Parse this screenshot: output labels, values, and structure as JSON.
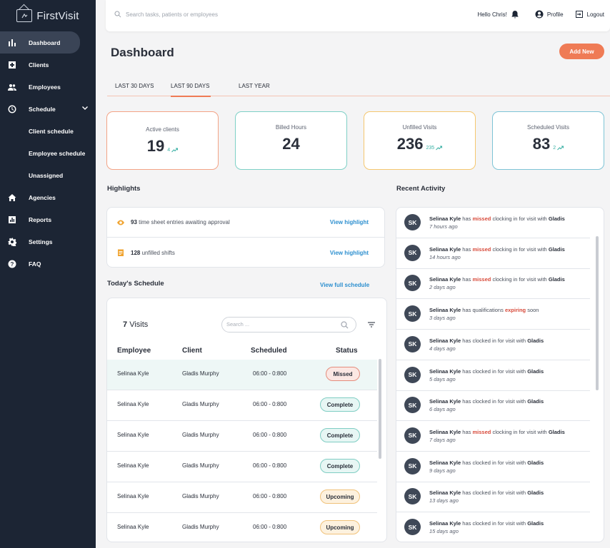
{
  "app": {
    "name": "FirstVisit"
  },
  "sidebar": {
    "items": [
      {
        "label": "Dashboard",
        "icon": "bar-chart-icon"
      },
      {
        "label": "Clients",
        "icon": "medical-cross-icon"
      },
      {
        "label": "Employees",
        "icon": "people-icon"
      },
      {
        "label": "Schedule",
        "icon": "clock-icon"
      },
      {
        "label": "Client schedule"
      },
      {
        "label": "Employee schedule"
      },
      {
        "label": "Unassigned"
      },
      {
        "label": "Agencies",
        "icon": "home-icon"
      },
      {
        "label": "Reports",
        "icon": "report-icon"
      },
      {
        "label": "Settings",
        "icon": "gear-icon"
      },
      {
        "label": "FAQ",
        "icon": "help-icon"
      }
    ]
  },
  "topbar": {
    "search_placeholder": "Search tasks, patients or employees",
    "greeting": "Hello Chris!",
    "profile": "Profile",
    "logout": "Logout"
  },
  "header": {
    "title": "Dashboard",
    "add_new": "Add New"
  },
  "tabs": [
    "LAST 30 DAYS",
    "LAST 90 DAYS",
    "LAST YEAR"
  ],
  "stats": [
    {
      "label": "Active clients",
      "value": "19",
      "delta": "4"
    },
    {
      "label": "Billed Hours",
      "value": "24"
    },
    {
      "label": "Unfilled Visits",
      "value": "236",
      "delta": "235"
    },
    {
      "label": "Scheduled Visits",
      "value": "83",
      "delta": "2"
    }
  ],
  "highlights": {
    "title": "Highlights",
    "items": [
      {
        "count": "93",
        "text": "time sheet entries awaiting approval",
        "link": "View highlight"
      },
      {
        "count": "128",
        "text": "unfilled shifts",
        "link": "View highlight"
      }
    ]
  },
  "schedule": {
    "title": "Today's Schedule",
    "view_full": "View full schedule",
    "visits_count": "7",
    "visits_label": "Visits",
    "search_placeholder": "Search ...",
    "columns": [
      "Employee",
      "Client",
      "Scheduled",
      "Status"
    ],
    "rows": [
      {
        "employee": "Selinaa Kyle",
        "client": "Gladis Murphy",
        "time": "06:00 - 0:800",
        "status": "Missed"
      },
      {
        "employee": "Selinaa Kyle",
        "client": "Gladis Murphy",
        "time": "06:00 - 0:800",
        "status": "Complete"
      },
      {
        "employee": "Selinaa Kyle",
        "client": "Gladis Murphy",
        "time": "06:00 - 0:800",
        "status": "Complete"
      },
      {
        "employee": "Selinaa Kyle",
        "client": "Gladis Murphy",
        "time": "06:00 - 0:800",
        "status": "Complete"
      },
      {
        "employee": "Selinaa Kyle",
        "client": "Gladis Murphy",
        "time": "06:00 - 0:800",
        "status": "Upcoming"
      },
      {
        "employee": "Selinaa Kyle",
        "client": "Gladis Murphy",
        "time": "06:00 - 0:800",
        "status": "Upcoming"
      }
    ]
  },
  "activity": {
    "title": "Recent Activity",
    "items": [
      {
        "initials": "SK",
        "name": "Selinaa Kyle",
        "pre": "has",
        "highlight": "missed",
        "post": "clocking in for visit with",
        "target": "Gladis",
        "time": "7 hours ago"
      },
      {
        "initials": "SK",
        "name": "Selinaa Kyle",
        "pre": "has",
        "highlight": "missed",
        "post": "clocking in for visit with",
        "target": "Gladis",
        "time": "14 hours ago"
      },
      {
        "initials": "SK",
        "name": "Selinaa Kyle",
        "pre": "has",
        "highlight": "missed",
        "post": "clocking in for visit with",
        "target": "Gladis",
        "time": "2 days ago"
      },
      {
        "initials": "SK",
        "name": "Selinaa Kyle",
        "pre": "has qualifications",
        "highlight": "expiring",
        "post": "soon",
        "target": "",
        "time": "3 days ago"
      },
      {
        "initials": "SK",
        "name": "Selinaa Kyle",
        "pre": "has clocked in for visit with",
        "highlight": "",
        "post": "",
        "target": "Gladis",
        "time": "4 days ago"
      },
      {
        "initials": "SK",
        "name": "Selinaa Kyle",
        "pre": "has clocked in for visit with",
        "highlight": "",
        "post": "",
        "target": "Gladis",
        "time": "5 days ago"
      },
      {
        "initials": "SK",
        "name": "Selinaa Kyle",
        "pre": "has clocked in for visit with",
        "highlight": "",
        "post": "",
        "target": "Gladis",
        "time": "6 days ago"
      },
      {
        "initials": "SK",
        "name": "Selinaa Kyle",
        "pre": "has",
        "highlight": "missed",
        "post": "clocking in for visit with",
        "target": "Gladis",
        "time": "7 days ago"
      },
      {
        "initials": "SK",
        "name": "Selinaa Kyle",
        "pre": "has clocked in for visit with",
        "highlight": "",
        "post": "",
        "target": "Gladis",
        "time": "9 days ago"
      },
      {
        "initials": "SK",
        "name": "Selinaa Kyle",
        "pre": "has clocked in for visit with",
        "highlight": "",
        "post": "",
        "target": "Gladis",
        "time": "13 days ago"
      },
      {
        "initials": "SK",
        "name": "Selinaa Kyle",
        "pre": "has clocked in for visit with",
        "highlight": "",
        "post": "",
        "target": "Gladis",
        "time": "15 days ago"
      }
    ]
  },
  "colors": {
    "sidebar": "#1c2534",
    "accent": "#ef7b55",
    "link": "#2c8fcf",
    "missed": "#d84a3a",
    "trend": "#39b0a4"
  }
}
